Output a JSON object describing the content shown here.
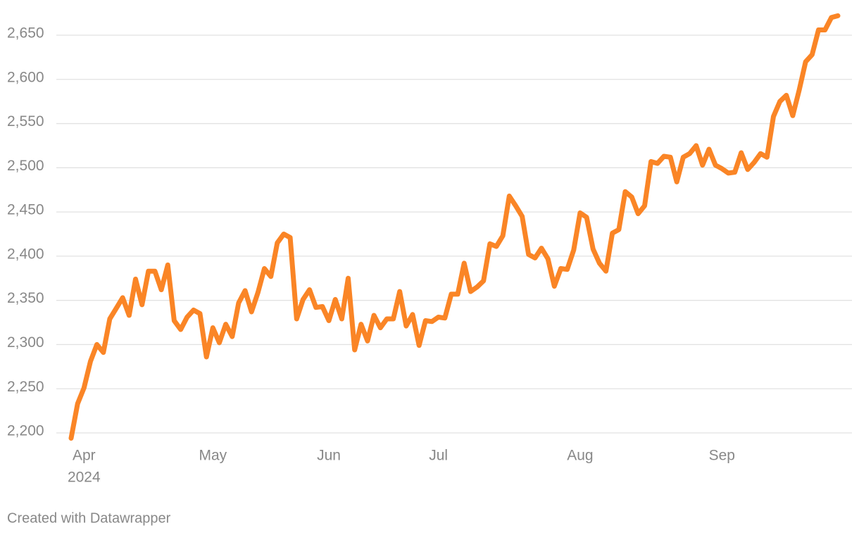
{
  "chart_data": {
    "type": "line",
    "categories": [
      null,
      null,
      "Apr",
      null,
      null,
      null,
      null,
      null,
      null,
      null,
      null,
      null,
      null,
      null,
      null,
      null,
      null,
      null,
      null,
      null,
      null,
      null,
      "May",
      null,
      null,
      null,
      null,
      null,
      null,
      null,
      null,
      null,
      null,
      null,
      null,
      null,
      null,
      null,
      null,
      null,
      "Jun",
      null,
      null,
      null,
      null,
      null,
      null,
      null,
      null,
      null,
      null,
      null,
      null,
      null,
      null,
      null,
      null,
      "Jul",
      null,
      null,
      null,
      null,
      null,
      null,
      null,
      null,
      null,
      null,
      null,
      null,
      null,
      null,
      null,
      null,
      null,
      null,
      null,
      null,
      null,
      "Aug",
      null,
      null,
      null,
      null,
      null,
      null,
      null,
      null,
      null,
      null,
      null,
      null,
      null,
      null,
      null,
      null,
      null,
      null,
      null,
      null,
      null,
      "Sep",
      null,
      null,
      null,
      null,
      null,
      null,
      null,
      null,
      null,
      null,
      null,
      null,
      null,
      null,
      null,
      null,
      null,
      null
    ],
    "year_label": "2024",
    "series": [
      {
        "color": "#fa8526",
        "values": [
          2194,
          2233,
          2251,
          2281,
          2300,
          2291,
          2329,
          2341,
          2353,
          2333,
          2374,
          2345,
          2383,
          2383,
          2362,
          2390,
          2327,
          2317,
          2331,
          2339,
          2335,
          2286,
          2319,
          2302,
          2323,
          2309,
          2347,
          2361,
          2337,
          2359,
          2386,
          2377,
          2415,
          2425,
          2421,
          2329,
          2351,
          2362,
          2342,
          2343,
          2327,
          2351,
          2329,
          2375,
          2294,
          2323,
          2304,
          2333,
          2319,
          2329,
          2329,
          2360,
          2321,
          2334,
          2299,
          2327,
          2326,
          2331,
          2330,
          2357,
          2357,
          2392,
          2360,
          2365,
          2372,
          2414,
          2411,
          2423,
          2468,
          2457,
          2445,
          2402,
          2398,
          2409,
          2397,
          2366,
          2386,
          2385,
          2407,
          2449,
          2444,
          2408,
          2392,
          2383,
          2426,
          2430,
          2473,
          2467,
          2448,
          2457,
          2507,
          2505,
          2513,
          2512,
          2484,
          2512,
          2516,
          2525,
          2503,
          2521,
          2503,
          2499,
          2494,
          2495,
          2517,
          2498,
          2506,
          2516,
          2512,
          2558,
          2575,
          2582,
          2559,
          2588,
          2620,
          2628,
          2656,
          2656,
          2670,
          2672
        ]
      }
    ],
    "ylim": [
      2185,
      2680
    ],
    "yticks": [
      {
        "value": 2200,
        "label": "2,200"
      },
      {
        "value": 2250,
        "label": "2,250"
      },
      {
        "value": 2300,
        "label": "2,300"
      },
      {
        "value": 2350,
        "label": "2,350"
      },
      {
        "value": 2400,
        "label": "2,400"
      },
      {
        "value": 2450,
        "label": "2,450"
      },
      {
        "value": 2500,
        "label": "2,500"
      },
      {
        "value": 2550,
        "label": "2,550"
      },
      {
        "value": 2600,
        "label": "2,600"
      },
      {
        "value": 2650,
        "label": "2,650"
      }
    ],
    "grid": true,
    "footer": "Created with Datawrapper"
  }
}
